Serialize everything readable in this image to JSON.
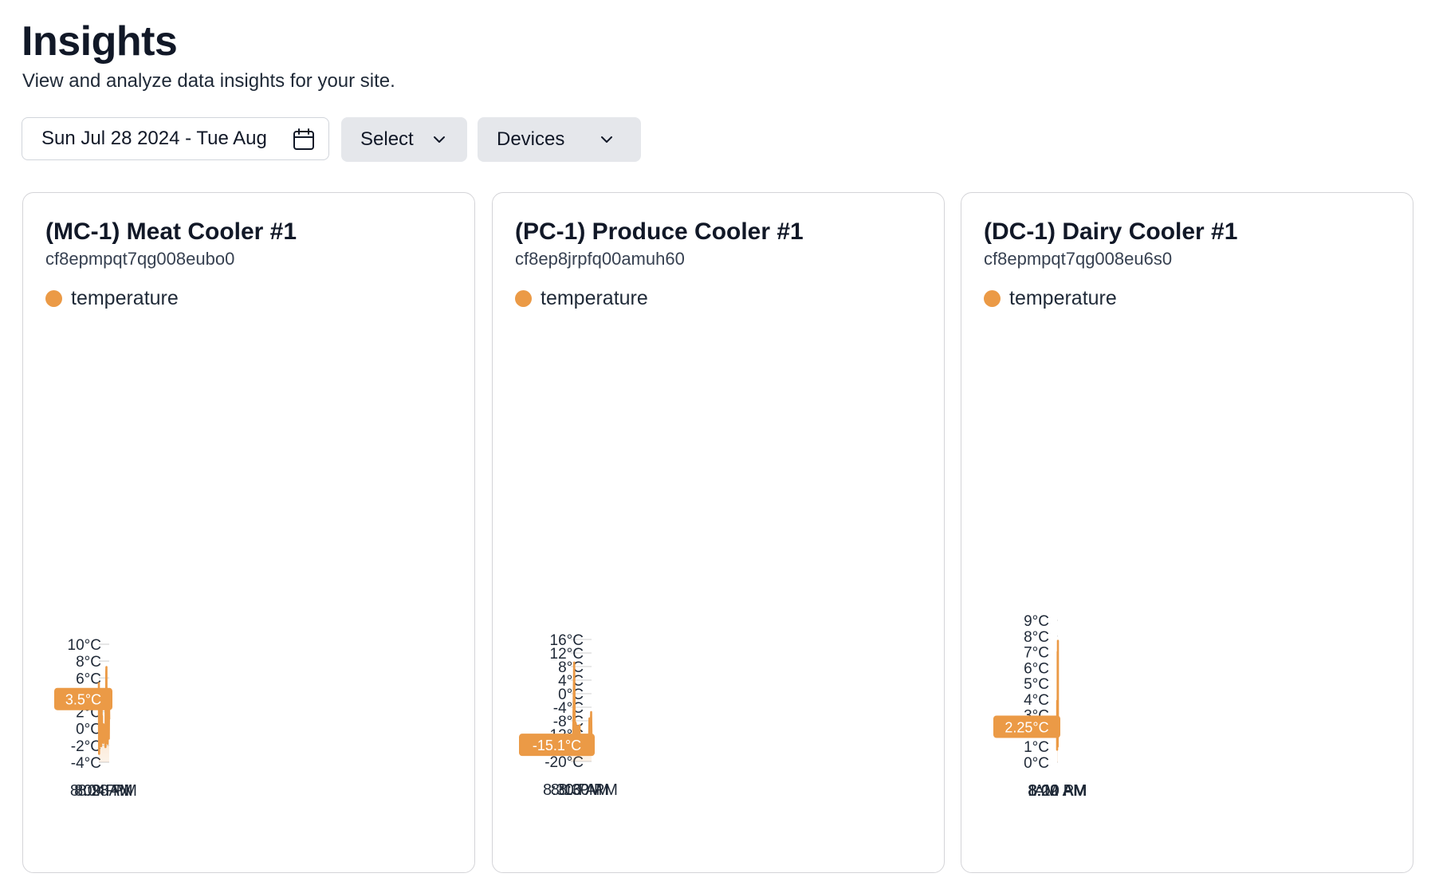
{
  "header": {
    "title": "Insights",
    "subtitle": "View and analyze data insights for your site."
  },
  "toolbar": {
    "date_range": "Sun Jul 28 2024 - Tue Aug",
    "select_label": "Select",
    "devices_label": "Devices",
    "icons": {
      "date": "calendar-icon",
      "dropdown": "chevron-down-icon"
    }
  },
  "colors": {
    "accent": "#eb9a46",
    "grid": "#d9d9d9",
    "card_border": "#d4d4d8"
  },
  "cards": [
    {
      "title": "(MC-1) Meat Cooler #1",
      "device_id": "cf8epmpqt7qg008eubo0",
      "legend": "temperature",
      "avg_label": "3.5°C",
      "chart_data": {
        "type": "area",
        "series": [
          {
            "name": "temperature",
            "values": [
              1.1,
              2.8,
              -1.2,
              0.9,
              -0.8,
              -0.1,
              -1.1,
              2.7,
              -1.8,
              -1.6,
              -0.9,
              -1.0,
              4.0,
              -1.3,
              7.3,
              6.7,
              -0.4,
              -1.7,
              3.1,
              -2.2,
              -0.6,
              -1.3,
              -1.2,
              0.0,
              0.0,
              0.1,
              0.1,
              0.1,
              0.3,
              0.5,
              -1.7,
              0.3,
              -0.9,
              -1.5,
              0.5,
              -1.6,
              1.5,
              -1.5,
              2.8,
              -1.6,
              0.8,
              -2.1,
              0.9,
              -1.4,
              0.2,
              3.8,
              1.1,
              -1.4,
              4.5,
              0.1,
              -0.1,
              -3.0,
              5.5
            ]
          }
        ],
        "avg": 3.5,
        "yticks": [
          -4,
          -2,
          0,
          2,
          4,
          6,
          8,
          10
        ],
        "ytick_labels": [
          "-4°C",
          "-2°C",
          "0°C",
          "2°C",
          "4°C",
          "6°C",
          "8°C",
          "10°C"
        ],
        "ylim": [
          -4,
          10
        ],
        "xtick_labels": [
          "8:28 PM",
          "8:04 AM",
          "8:09 PM"
        ],
        "xtick_positions": [
          0.18,
          0.55,
          0.915
        ],
        "xtick_align": [
          "middle",
          "middle",
          "middle"
        ],
        "grid": true
      }
    },
    {
      "title": "(PC-1) Produce Cooler #1",
      "device_id": "cf8ep8jrpfq00amuh60",
      "legend": "temperature",
      "avg_label": "-15.1°C",
      "chart_data": {
        "type": "area",
        "series": [
          {
            "name": "temperature",
            "values": [
              -13.7,
              -5.4,
              -10.1,
              -12.4,
              -7.4,
              -7.3,
              -13.7,
              -15.1,
              -16.4,
              -17.0,
              -17.1,
              -17.2,
              -17.3,
              -17.3,
              -17.4,
              -17.5,
              -17.5,
              -17.6,
              -17.6,
              -17.6,
              -13.9,
              -15.7,
              -17.5,
              -17.8,
              -17.8,
              -18.0,
              -18.0,
              -17.0,
              -16.1,
              -9.3,
              -14.8,
              -16.3,
              -17.0,
              -15.6,
              -9.6,
              -10.3,
              -15.1,
              -10.3,
              -8.8,
              -8.5,
              -15.6,
              -2.0,
              9.2,
              -2.7,
              -10.3,
              -13.5,
              -14.2,
              -14.8,
              -15.2,
              -14.4,
              -14.7
            ]
          }
        ],
        "avg": -15.1,
        "yticks": [
          -20,
          -16,
          -12,
          -8,
          -4,
          0,
          4,
          8,
          12,
          16
        ],
        "ytick_labels": [
          "-20°C",
          "-16°C",
          "-12°C",
          "-8°C",
          "-4°C",
          "0°C",
          "4°C",
          "8°C",
          "12°C",
          "16°C"
        ],
        "ylim": [
          -20,
          16
        ],
        "xtick_labels": [
          "8:30 PM",
          "8:16 AM",
          "8:30 PM"
        ],
        "xtick_positions": [
          0.165,
          0.56,
          0.915
        ],
        "xtick_align": [
          "middle",
          "middle",
          "middle"
        ],
        "grid": true
      }
    },
    {
      "title": "(DC-1) Dairy Cooler #1",
      "device_id": "cf8epmpqt7qg008eu6s0",
      "legend": "temperature",
      "avg_label": "2.25°C",
      "chart_data": {
        "type": "area",
        "series": [
          {
            "name": "temperature",
            "values": [
              1.7,
              1.8,
              0.8,
              2.2,
              0.9,
              1.2,
              2.5,
              3.4,
              1.8,
              2.3,
              3.9,
              1.4,
              1.8,
              1.9,
              2.7,
              1.7,
              2.8,
              1.6,
              2.4,
              2.0,
              1.1,
              2.9,
              2.0,
              2.1,
              1.5,
              1.7,
              2.2,
              1.7,
              1.9,
              2.2,
              1.6,
              2.9,
              1.5,
              1.7,
              1.7,
              1.6,
              1.7,
              1.7,
              1.8,
              2.1,
              1.7,
              2.4,
              1.3,
              1.5,
              1.5,
              2.0,
              2.4,
              1.4,
              1.2,
              2.1,
              1.1,
              2.5,
              2.3,
              2.0,
              3.4,
              1.2,
              1.6,
              1.0,
              2.6,
              3.8,
              7.0,
              3.8,
              3.4,
              3.3,
              5.1,
              2.4,
              3.0,
              2.3,
              2.5,
              6.8,
              2.7,
              3.0,
              2.2,
              2.3,
              3.3,
              6.8,
              2.3,
              2.1,
              7.7,
              5.7,
              2.3,
              6.0
            ]
          }
        ],
        "avg": 2.25,
        "yticks": [
          0,
          1,
          2,
          3,
          4,
          5,
          6,
          7,
          8,
          9
        ],
        "ytick_labels": [
          "0°C",
          "1°C",
          "2°C",
          "3°C",
          "4°C",
          "5°C",
          "6°C",
          "7°C",
          "8°C",
          "9°C"
        ],
        "ylim": [
          0,
          9
        ],
        "xtick_labels": [
          "1:00 AM",
          "8:22 PM",
          "8:10 AM",
          "AM"
        ],
        "xtick_positions": [
          0.0,
          0.34,
          0.68,
          1.0
        ],
        "xtick_align": [
          "middle",
          "middle",
          "middle",
          "end"
        ],
        "grid": true
      }
    }
  ]
}
